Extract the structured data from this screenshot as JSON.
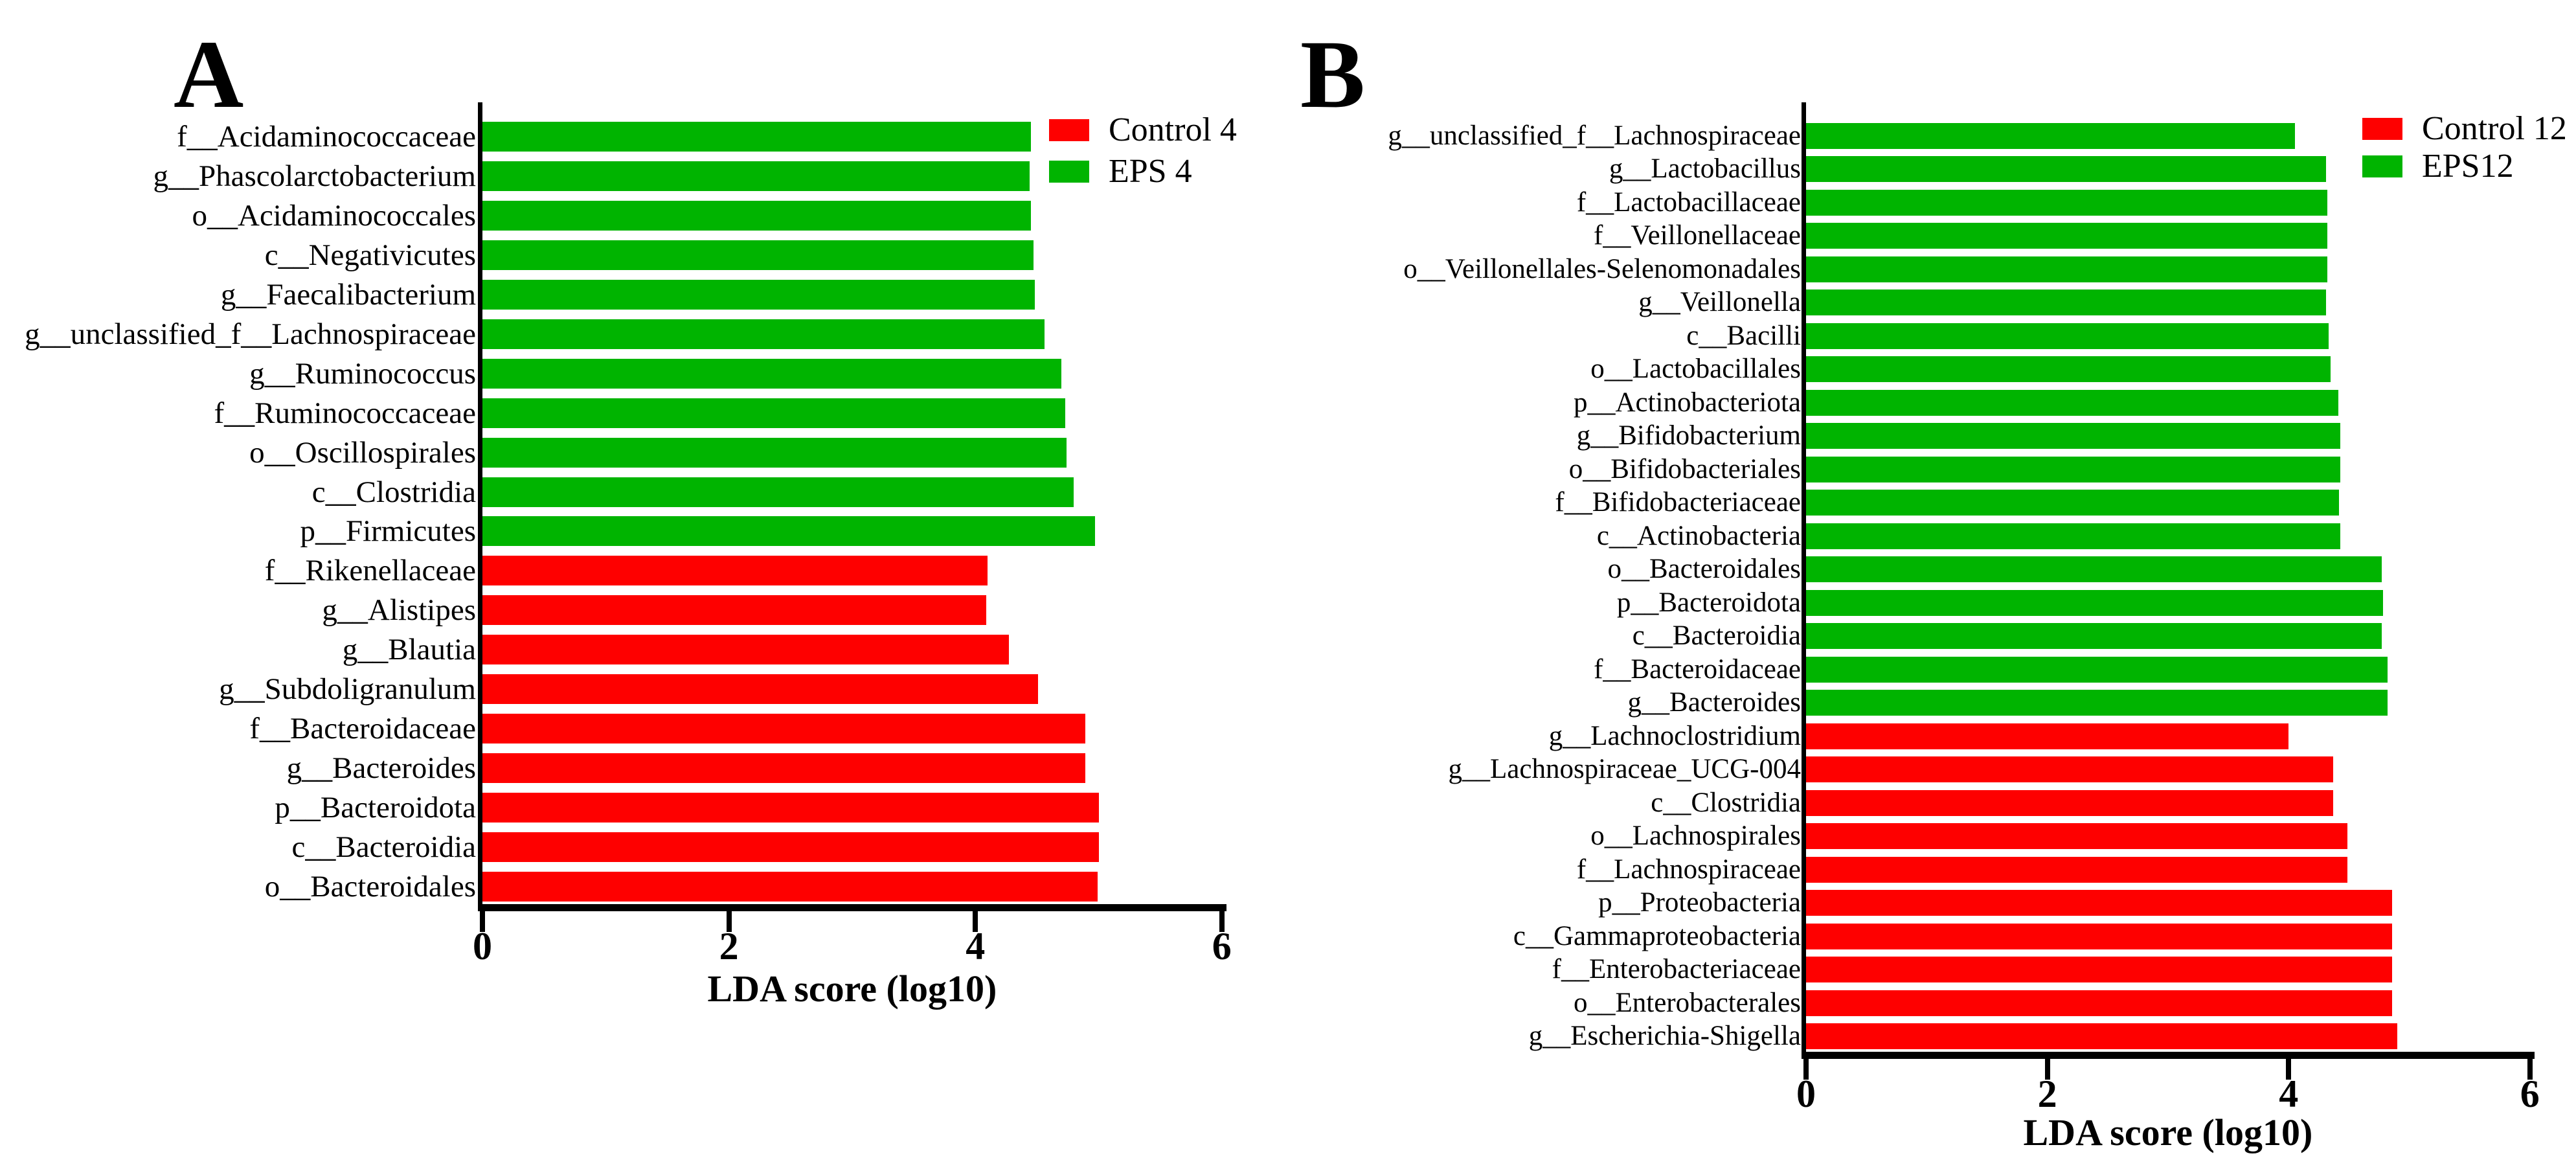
{
  "figure": {
    "description": "LEfSe linear discriminant analysis (LDA) score bar charts, two panels",
    "background_color": "#ffffff",
    "axis_color": "#000000",
    "red_hex": "#fe0000",
    "green_hex": "#00b400"
  },
  "chart_data": [
    {
      "type": "bar",
      "orientation": "horizontal",
      "panel_label": "A",
      "xlabel": "LDA score (log10)",
      "xlim": [
        0,
        6
      ],
      "xticks": [
        0,
        2,
        4,
        6
      ],
      "grid": false,
      "legend_position": "top-right",
      "legend": [
        {
          "label": "Control 4",
          "color": "#fe0000"
        },
        {
          "label": "EPS 4",
          "color": "#00b400"
        }
      ],
      "bars": [
        {
          "label": "f__Acidaminococcaceae",
          "group": "EPS 4",
          "value": 4.45
        },
        {
          "label": "g__Phascolarctobacterium",
          "group": "EPS 4",
          "value": 4.44
        },
        {
          "label": "o__Acidaminococcales",
          "group": "EPS 4",
          "value": 4.45
        },
        {
          "label": "c__Negativicutes",
          "group": "EPS 4",
          "value": 4.47
        },
        {
          "label": "g__Faecalibacterium",
          "group": "EPS 4",
          "value": 4.48
        },
        {
          "label": "g__unclassified_f__Lachnospiraceae",
          "group": "EPS 4",
          "value": 4.56
        },
        {
          "label": "g__Ruminococcus",
          "group": "EPS 4",
          "value": 4.7
        },
        {
          "label": "f__Ruminococcaceae",
          "group": "EPS 4",
          "value": 4.73
        },
        {
          "label": "o__Oscillospirales",
          "group": "EPS 4",
          "value": 4.74
        },
        {
          "label": "c__Clostridia",
          "group": "EPS 4",
          "value": 4.8
        },
        {
          "label": "p__Firmicutes",
          "group": "EPS 4",
          "value": 4.97
        },
        {
          "label": "f__Rikenellaceae",
          "group": "Control 4",
          "value": 4.1
        },
        {
          "label": "g__Alistipes",
          "group": "Control 4",
          "value": 4.09
        },
        {
          "label": "g__Blautia",
          "group": "Control 4",
          "value": 4.27
        },
        {
          "label": "g__Subdoligranulum",
          "group": "Control 4",
          "value": 4.51
        },
        {
          "label": "f__Bacteroidaceae",
          "group": "Control 4",
          "value": 4.89
        },
        {
          "label": "g__Bacteroides",
          "group": "Control 4",
          "value": 4.89
        },
        {
          "label": "p__Bacteroidota",
          "group": "Control 4",
          "value": 5.0
        },
        {
          "label": "c__Bacteroidia",
          "group": "Control 4",
          "value": 5.0
        },
        {
          "label": "o__Bacteroidales",
          "group": "Control 4",
          "value": 4.99
        }
      ]
    },
    {
      "type": "bar",
      "orientation": "horizontal",
      "panel_label": "B",
      "xlabel": "LDA score (log10)",
      "xlim": [
        0,
        6
      ],
      "xticks": [
        0,
        2,
        4,
        6
      ],
      "grid": false,
      "legend_position": "top-right",
      "legend": [
        {
          "label": "Control 12",
          "color": "#fe0000"
        },
        {
          "label": "EPS12",
          "color": "#00b400"
        }
      ],
      "bars": [
        {
          "label": "g__unclassified_f__Lachnospiraceae",
          "group": "EPS12",
          "value": 4.05
        },
        {
          "label": "g__Lactobacillus",
          "group": "EPS12",
          "value": 4.31
        },
        {
          "label": "f__Lactobacillaceae",
          "group": "EPS12",
          "value": 4.32
        },
        {
          "label": "f__Veillonellaceae",
          "group": "EPS12",
          "value": 4.32
        },
        {
          "label": "o__Veillonellales-Selenomonadales",
          "group": "EPS12",
          "value": 4.32
        },
        {
          "label": "g__Veillonella",
          "group": "EPS12",
          "value": 4.31
        },
        {
          "label": "c__Bacilli",
          "group": "EPS12",
          "value": 4.33
        },
        {
          "label": "o__Lactobacillales",
          "group": "EPS12",
          "value": 4.35
        },
        {
          "label": "p__Actinobacteriota",
          "group": "EPS12",
          "value": 4.41
        },
        {
          "label": "g__Bifidobacterium",
          "group": "EPS12",
          "value": 4.43
        },
        {
          "label": "o__Bifidobacteriales",
          "group": "EPS12",
          "value": 4.43
        },
        {
          "label": "f__Bifidobacteriaceae",
          "group": "EPS12",
          "value": 4.42
        },
        {
          "label": "c__Actinobacteria",
          "group": "EPS12",
          "value": 4.43
        },
        {
          "label": "o__Bacteroidales",
          "group": "EPS12",
          "value": 4.77
        },
        {
          "label": "p__Bacteroidota",
          "group": "EPS12",
          "value": 4.78
        },
        {
          "label": "c__Bacteroidia",
          "group": "EPS12",
          "value": 4.77
        },
        {
          "label": "f__Bacteroidaceae",
          "group": "EPS12",
          "value": 4.82
        },
        {
          "label": "g__Bacteroides",
          "group": "EPS12",
          "value": 4.82
        },
        {
          "label": "g__Lachnoclostridium",
          "group": "Control 12",
          "value": 4.0
        },
        {
          "label": "g__Lachnospiraceae_UCG-004",
          "group": "Control 12",
          "value": 4.37
        },
        {
          "label": "c__Clostridia",
          "group": "Control 12",
          "value": 4.37
        },
        {
          "label": "o__Lachnospirales",
          "group": "Control 12",
          "value": 4.49
        },
        {
          "label": "f__Lachnospiraceae",
          "group": "Control 12",
          "value": 4.49
        },
        {
          "label": "p__Proteobacteria",
          "group": "Control 12",
          "value": 4.86
        },
        {
          "label": "c__Gammaproteobacteria",
          "group": "Control 12",
          "value": 4.86
        },
        {
          "label": "f__Enterobacteriaceae",
          "group": "Control 12",
          "value": 4.86
        },
        {
          "label": "o__Enterobacterales",
          "group": "Control 12",
          "value": 4.86
        },
        {
          "label": "g__Escherichia-Shigella",
          "group": "Control 12",
          "value": 4.9
        }
      ]
    }
  ]
}
